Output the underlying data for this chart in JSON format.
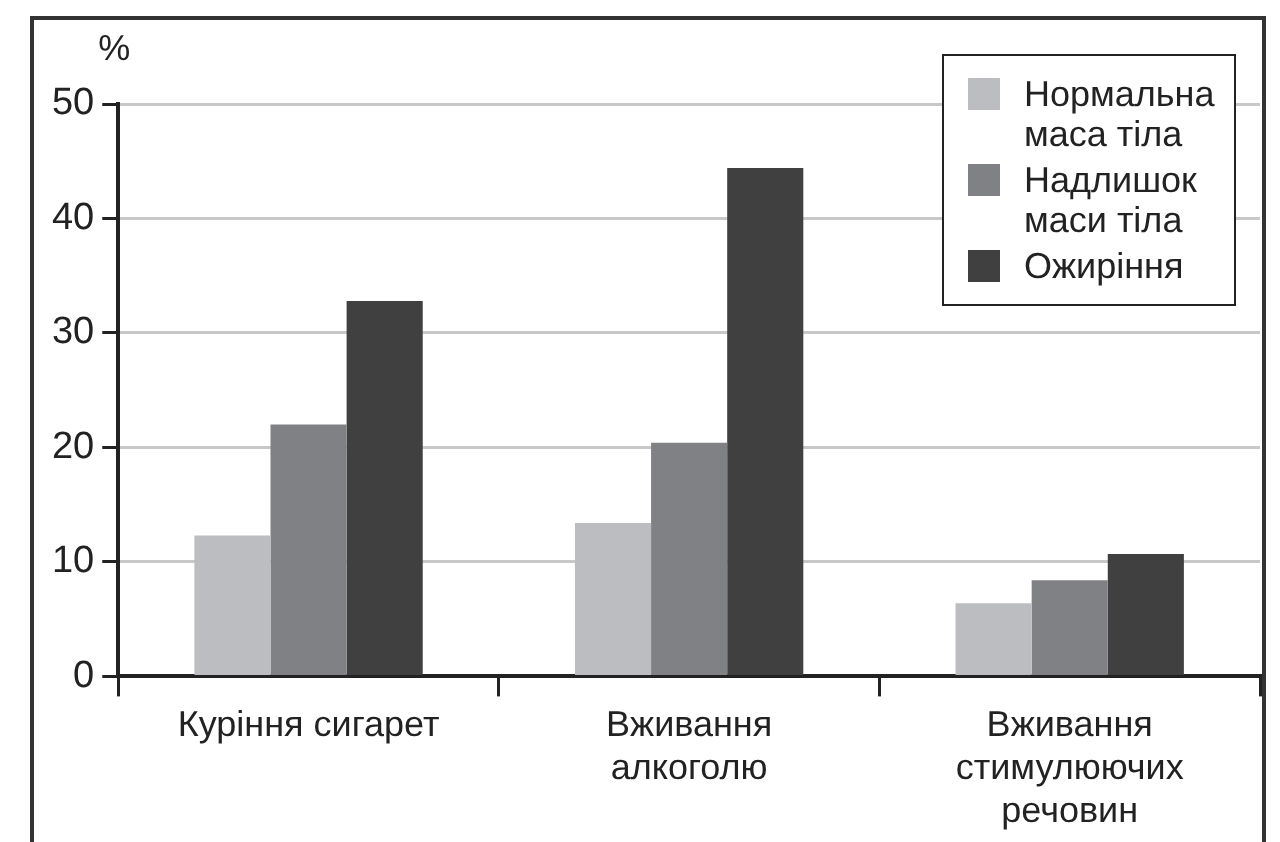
{
  "chart_data": {
    "type": "bar",
    "ylabel": "%",
    "categories": [
      "Куріння сигарет",
      "Вживання\nалкоголю",
      "Вживання\nстимулюючих\nречовин"
    ],
    "series": [
      {
        "name": "Нормальна\nмаса тіла",
        "color": "#bcbdc0",
        "values": [
          12.3,
          13.4,
          6.4
        ]
      },
      {
        "name": "Надлишок\nмаси тіла",
        "color": "#808184",
        "values": [
          22.0,
          20.4,
          8.4
        ]
      },
      {
        "name": "Ожиріння",
        "color": "#404040",
        "values": [
          32.8,
          44.4,
          10.7
        ]
      }
    ],
    "ylim": [
      0,
      50
    ],
    "yticks": [
      0,
      10,
      20,
      30,
      40,
      50
    ],
    "grid": "y",
    "legend": "top right"
  }
}
